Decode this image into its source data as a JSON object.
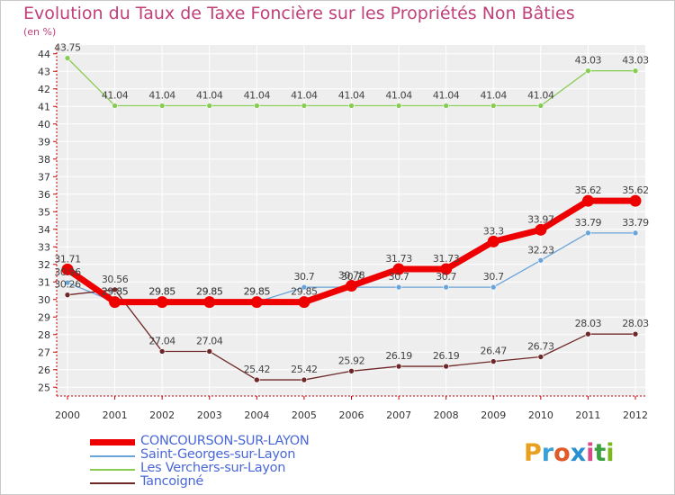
{
  "title": "Evolution du Taux de Taxe Foncière sur les Propriétés Non Bâties",
  "unit_label": "(en %)",
  "logo": {
    "text": "Proxiti",
    "colors": [
      "#e8a020",
      "#3aa0d8",
      "#e05a2a",
      "#2a8fd0",
      "#d84a8a",
      "#3aa040",
      "#7ab820"
    ]
  },
  "chart_data": {
    "type": "line",
    "x": [
      "2000",
      "2001",
      "2002",
      "2003",
      "2004",
      "2005",
      "2006",
      "2007",
      "2008",
      "2009",
      "2010",
      "2011",
      "2012"
    ],
    "ylim": [
      25,
      44
    ],
    "y_ticks": [
      25,
      26,
      27,
      28,
      29,
      30,
      31,
      32,
      33,
      34,
      35,
      36,
      37,
      38,
      39,
      40,
      41,
      42,
      43,
      44
    ],
    "grid": true,
    "legend_position": "bottom-left",
    "series": [
      {
        "name": "CONCOURSON-SUR-LAYON",
        "color": "#ee0000",
        "width": 7,
        "values": [
          31.71,
          29.85,
          29.85,
          29.85,
          29.85,
          29.85,
          30.78,
          31.73,
          31.73,
          33.3,
          33.97,
          35.62,
          35.62
        ],
        "labels": [
          "31.71",
          "29.85",
          "29.85",
          "29.85",
          "29.85",
          "29.85",
          "30.78",
          "31.73",
          "31.73",
          "33.3",
          "33.97",
          "35.62",
          "35.62"
        ]
      },
      {
        "name": "Saint-Georges-sur-Layon",
        "color": "#6aa4d8",
        "width": 1.3,
        "values": [
          30.96,
          29.85,
          29.85,
          29.85,
          29.85,
          30.7,
          30.7,
          30.7,
          30.7,
          30.7,
          32.23,
          33.79,
          33.79
        ],
        "labels": [
          "30.96",
          "29.85",
          "29.85",
          "29.85",
          "29.85",
          "30.7",
          "30.7",
          "30.7",
          "30.7",
          "30.7",
          "32.23",
          "33.79",
          "33.79"
        ]
      },
      {
        "name": "Les Verchers-sur-Layon",
        "color": "#88cc55",
        "width": 1.3,
        "values": [
          43.75,
          41.04,
          41.04,
          41.04,
          41.04,
          41.04,
          41.04,
          41.04,
          41.04,
          41.04,
          41.04,
          43.03,
          43.03
        ],
        "labels": [
          "43.75",
          "41.04",
          "41.04",
          "41.04",
          "41.04",
          "41.04",
          "41.04",
          "41.04",
          "41.04",
          "41.04",
          "41.04",
          "43.03",
          "43.03"
        ]
      },
      {
        "name": "Tancoigné",
        "color": "#6e2828",
        "width": 1.3,
        "values": [
          30.26,
          30.56,
          27.04,
          27.04,
          25.42,
          25.42,
          25.92,
          26.19,
          26.19,
          26.47,
          26.73,
          28.03,
          28.03
        ],
        "labels": [
          "30.26",
          "30.56",
          "27.04",
          "27.04",
          "25.42",
          "25.42",
          "25.92",
          "26.19",
          "26.19",
          "26.47",
          "26.73",
          "28.03",
          "28.03"
        ]
      }
    ]
  }
}
